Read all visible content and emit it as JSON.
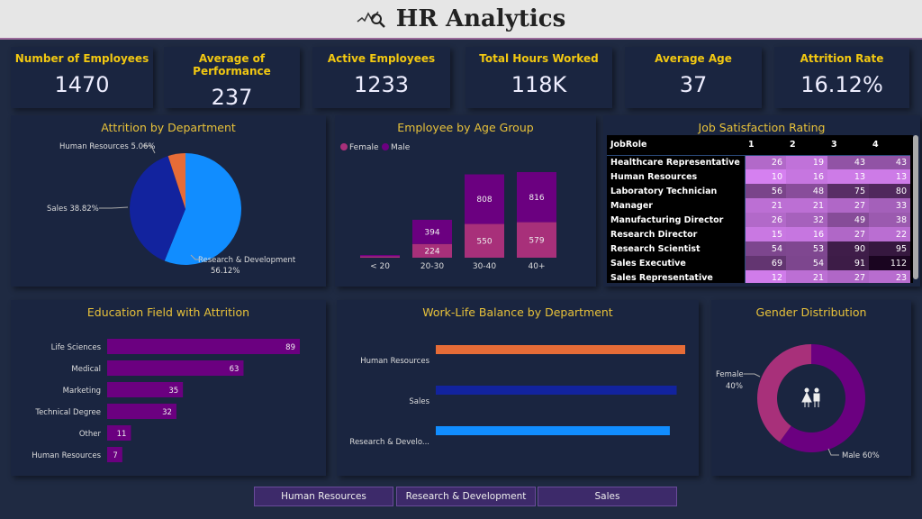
{
  "header": {
    "title": "HR Analytics",
    "icon": "analytics-search-icon"
  },
  "kpis": [
    {
      "label": "Number of Employees",
      "value": "1470"
    },
    {
      "label": "Average of Performance",
      "value": "237"
    },
    {
      "label": "Active Employees",
      "value": "1233"
    },
    {
      "label": "Total Hours Worked",
      "value": "118K"
    },
    {
      "label": "Average Age",
      "value": "37"
    },
    {
      "label": "Attrition Rate",
      "value": "16.12%"
    }
  ],
  "chart_data": [
    {
      "type": "pie",
      "title": "Attrition by Department",
      "slices": [
        {
          "label": "Research & Development",
          "value": 56.12,
          "text": "Research & Development",
          "pct": "56.12%",
          "color": "#118dff"
        },
        {
          "label": "Sales",
          "value": 38.82,
          "text": "Sales 38.82%",
          "color": "#12239e"
        },
        {
          "label": "Human Resources",
          "value": 5.06,
          "text": "Human Resources 5.06%",
          "color": "#e66c37"
        }
      ]
    },
    {
      "type": "bar",
      "stacked": true,
      "title": "Employee by Age Group",
      "legend": "top-left",
      "categories": [
        "< 20",
        "20-30",
        "30-40",
        "40+"
      ],
      "series": [
        {
          "name": "Female",
          "color": "#a8307a",
          "values": [
            0,
            224,
            550,
            579
          ]
        },
        {
          "name": "Male",
          "color": "#6b0080",
          "values": [
            0,
            394,
            808,
            816
          ]
        }
      ]
    },
    {
      "type": "table",
      "title": "Job Satisfaction Rating",
      "columns": [
        "JobRole",
        "1",
        "2",
        "3",
        "4"
      ],
      "rows": [
        [
          "Healthcare Representative",
          26,
          19,
          43,
          43
        ],
        [
          "Human Resources",
          10,
          16,
          13,
          13
        ],
        [
          "Laboratory Technician",
          56,
          48,
          75,
          80
        ],
        [
          "Manager",
          21,
          21,
          27,
          33
        ],
        [
          "Manufacturing Director",
          26,
          32,
          49,
          38
        ],
        [
          "Research Director",
          15,
          16,
          27,
          22
        ],
        [
          "Research Scientist",
          54,
          53,
          90,
          95
        ],
        [
          "Sales Executive",
          69,
          54,
          91,
          112
        ],
        [
          "Sales Representative",
          12,
          21,
          27,
          23
        ]
      ]
    },
    {
      "type": "bar",
      "orientation": "horizontal",
      "title": "Education Field with Attrition",
      "color": "#6b0080",
      "categories": [
        "Life Sciences",
        "Medical",
        "Marketing",
        "Technical Degree",
        "Other",
        "Human Resources"
      ],
      "values": [
        89,
        63,
        35,
        32,
        11,
        7
      ]
    },
    {
      "type": "bar",
      "orientation": "horizontal",
      "title": "Work-Life Balance by Department",
      "categories": [
        "Human Resources",
        "Sales",
        "Research & Develo..."
      ],
      "values": [
        2.92,
        2.82,
        2.74
      ],
      "colors": [
        "#e66c37",
        "#12239e",
        "#118dff"
      ]
    },
    {
      "type": "pie",
      "donut": true,
      "title": "Gender Distribution",
      "center_icon": "male-female-icon",
      "slices": [
        {
          "label": "Male",
          "value": 60,
          "text": "Male 60%",
          "color": "#6b0080"
        },
        {
          "label": "Female",
          "value": 40,
          "text": "Female",
          "pct": "40%",
          "color": "#a8307a"
        }
      ]
    }
  ],
  "slicer": [
    "Human Resources",
    "Research & Development",
    "Sales"
  ]
}
